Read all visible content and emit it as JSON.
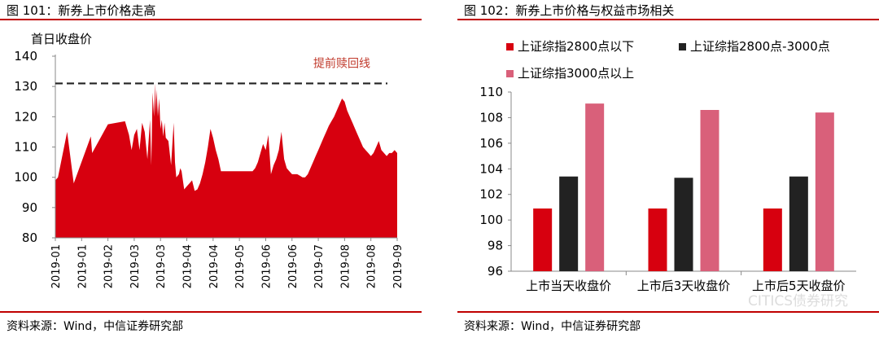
{
  "left": {
    "figure_title": "图 101：新券上市价格走高",
    "source": "资料来源：Wind，中信证券研究部"
  },
  "right": {
    "figure_title": "图 102：新券上市价格与权益市场相关",
    "source": "资料来源：Wind，中信证券研究部"
  },
  "watermark": "CITICS债券研究",
  "colors": {
    "rule": "#c00000",
    "area": "#d7000f",
    "dark": "#222222",
    "pink": "#d9607a"
  },
  "chart_data": [
    {
      "type": "area",
      "ylabel": "首日收盘价",
      "ylim": [
        80,
        140
      ],
      "yticks": [
        80,
        90,
        100,
        110,
        120,
        130,
        140
      ],
      "xticks": [
        "2019-01",
        "2019-01",
        "2019-02",
        "2019-03",
        "2019-03",
        "2019-04",
        "2019-04",
        "2019-05",
        "2019-06",
        "2019-06",
        "2019-07",
        "2019-08",
        "2019-08",
        "2019-09"
      ],
      "reference_line": {
        "value": 131,
        "label": "提前赎回线",
        "style": "dashed"
      },
      "x": [
        0,
        1,
        4.5,
        7,
        13.5,
        14,
        20,
        26.5,
        28,
        29,
        30,
        31,
        32,
        33,
        34,
        35,
        36,
        36.5,
        37,
        37.5,
        38,
        38.2,
        38.5,
        39,
        39.5,
        40,
        40.5,
        41,
        41.5,
        42,
        43,
        44,
        44.5,
        45,
        45.5,
        46,
        47,
        47.5,
        48,
        49,
        50,
        51,
        52,
        53,
        54,
        55,
        56,
        57,
        58,
        59,
        60,
        61,
        62,
        63,
        64,
        65,
        66,
        67,
        68,
        69,
        70,
        71,
        72,
        73,
        74,
        75,
        76,
        77,
        78,
        79,
        80,
        81,
        82,
        83,
        84,
        85,
        86,
        87,
        88,
        89,
        90,
        91,
        92,
        93,
        94,
        95,
        96,
        97,
        98,
        99,
        100,
        101,
        102,
        103,
        104,
        105,
        106,
        107,
        108,
        109,
        110,
        111,
        112,
        113,
        114,
        115,
        116,
        117,
        118,
        119,
        120,
        121,
        122,
        123,
        124,
        125,
        126,
        127,
        128,
        129,
        130
      ],
      "values": [
        99,
        100,
        115,
        98,
        113.5,
        108,
        117.5,
        118.5,
        114,
        109,
        114,
        116,
        109,
        118,
        115,
        106,
        119,
        104,
        128,
        120,
        131,
        121,
        129,
        120,
        126,
        116,
        119,
        113.5,
        118,
        113,
        112,
        104,
        111,
        118,
        105,
        100,
        101,
        103,
        102,
        96,
        97,
        98,
        99,
        95.5,
        96,
        98,
        101,
        105,
        110,
        116,
        113,
        109,
        106,
        102,
        102,
        102,
        102,
        102,
        102,
        102,
        102,
        102,
        102,
        102,
        102,
        102,
        103,
        105,
        108,
        111,
        109,
        114,
        101,
        104,
        106,
        109,
        115,
        106,
        103,
        102,
        101,
        101,
        101,
        100.5,
        100,
        100,
        101,
        103,
        105,
        107,
        109,
        111,
        113,
        115,
        117,
        118.5,
        120,
        122,
        124,
        126,
        125,
        122,
        120,
        118,
        116,
        114,
        112,
        110,
        109,
        108,
        107,
        108,
        110,
        112,
        109,
        108,
        107,
        108,
        108,
        109,
        108
      ],
      "xlim": [
        0,
        130
      ]
    },
    {
      "type": "bar",
      "categories": [
        "上市当天收盘价",
        "上市后3天收盘价",
        "上市后5天收盘价"
      ],
      "ylim": [
        96,
        110
      ],
      "yticks": [
        96,
        98,
        100,
        102,
        104,
        106,
        108,
        110
      ],
      "legend_position": "top",
      "series": [
        {
          "name": "上证综指2800点以下",
          "color": "#d7000f",
          "values": [
            100.9,
            100.9,
            100.9
          ]
        },
        {
          "name": "上证综指2800点-3000点",
          "color": "#222222",
          "values": [
            103.4,
            103.3,
            103.4
          ]
        },
        {
          "name": "上证综指3000点以上",
          "color": "#d9607a",
          "values": [
            109.1,
            108.6,
            108.4
          ]
        }
      ]
    }
  ]
}
